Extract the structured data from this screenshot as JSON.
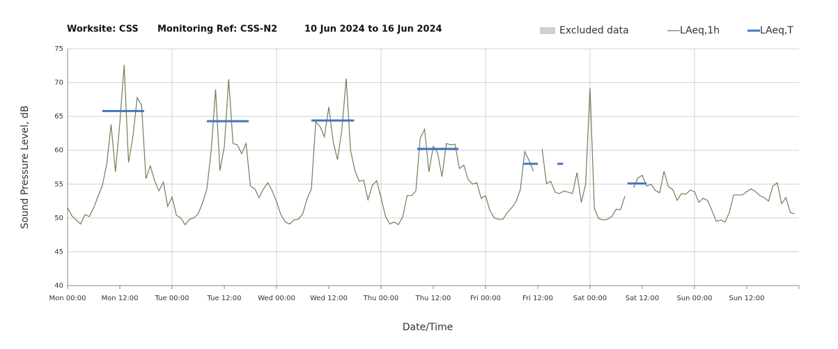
{
  "chart_data": {
    "type": "line",
    "title": [
      "Worksite: CSS",
      "Monitoring Ref: CSS-N2",
      "10 Jun 2024 to 16 Jun 2024"
    ],
    "y_label": "Sound Pressure Level, dB",
    "x_label": "Date/Time",
    "xlim": [
      0,
      168
    ],
    "xticks": [
      {
        "value": 0,
        "label": "Mon 00:00"
      },
      {
        "value": 12,
        "label": "Mon 12:00"
      },
      {
        "value": 24,
        "label": "Tue 00:00"
      },
      {
        "value": 36,
        "label": "Tue 12:00"
      },
      {
        "value": 48,
        "label": "Wed 00:00"
      },
      {
        "value": 60,
        "label": "Wed 12:00"
      },
      {
        "value": 72,
        "label": "Thu 00:00"
      },
      {
        "value": 84,
        "label": "Thu 12:00"
      },
      {
        "value": 96,
        "label": "Fri 00:00"
      },
      {
        "value": 108,
        "label": "Fri 12:00"
      },
      {
        "value": 120,
        "label": "Sat 00:00"
      },
      {
        "value": 132,
        "label": "Sat 12:00"
      },
      {
        "value": 144,
        "label": "Sun 00:00"
      },
      {
        "value": 156,
        "label": "Sun 12:00"
      }
    ],
    "ylim": [
      40,
      75
    ],
    "yticks": [
      40,
      45,
      50,
      55,
      60,
      65,
      70,
      75
    ],
    "grid": true,
    "legend": "top-right",
    "excluded": {
      "name": "Excluded data",
      "color": "#d0d0d0"
    },
    "x": [
      0,
      1,
      2,
      3,
      4,
      5,
      6,
      7,
      8,
      9,
      10,
      11,
      12,
      13,
      14,
      15,
      16,
      17,
      18,
      19,
      20,
      21,
      22,
      23,
      24,
      25,
      26,
      27,
      28,
      29,
      30,
      31,
      32,
      33,
      34,
      35,
      36,
      37,
      38,
      39,
      40,
      41,
      42,
      43,
      44,
      45,
      46,
      47,
      48,
      49,
      50,
      51,
      52,
      53,
      54,
      55,
      56,
      57,
      58,
      59,
      60,
      61,
      62,
      63,
      64,
      65,
      66,
      67,
      68,
      69,
      70,
      71,
      72,
      73,
      74,
      75,
      76,
      77,
      78,
      79,
      80,
      81,
      82,
      83,
      84,
      85,
      86,
      87,
      88,
      89,
      90,
      91,
      92,
      93,
      94,
      95,
      96,
      97,
      98,
      99,
      100,
      101,
      102,
      103,
      104,
      105,
      106,
      107,
      108,
      109,
      110,
      111,
      112,
      113,
      114,
      115,
      116,
      117,
      118,
      119,
      120,
      121,
      122,
      123,
      124,
      125,
      126,
      127,
      128,
      129,
      130,
      131,
      132,
      133,
      134,
      135,
      136,
      137,
      138,
      139,
      140,
      141,
      142,
      143,
      144,
      145,
      146,
      147,
      148,
      149,
      150,
      151,
      152,
      153,
      154,
      155,
      156,
      157,
      158,
      159,
      160,
      161,
      162,
      163,
      164,
      165,
      166,
      167
    ],
    "series": [
      {
        "name": "LAeq,1h",
        "color": "#6b7f55",
        "values": [
          51.5,
          50.3,
          49.7,
          49.1,
          50.5,
          50.2,
          51.5,
          53.2,
          54.8,
          58,
          63.8,
          56.8,
          64,
          72.6,
          58.2,
          62,
          67.8,
          66.6,
          55.8,
          57.7,
          55.5,
          54,
          55.3,
          51.7,
          53.1,
          50.4,
          50,
          49,
          49.8,
          50,
          50.6,
          52.2,
          54.3,
          60,
          69,
          57,
          60.5,
          70.5,
          61,
          60.8,
          59.5,
          61,
          54.7,
          54.3,
          53,
          54.3,
          55.2,
          54,
          52.4,
          50.5,
          49.4,
          49.1,
          49.7,
          49.8,
          50.6,
          52.8,
          54.3,
          64.2,
          63.5,
          62,
          66.4,
          61.3,
          58.6,
          63,
          70.6,
          60,
          57,
          55.4,
          55.6,
          52.7,
          54.8,
          55.5,
          53,
          50.3,
          49.1,
          49.4,
          49,
          50.2,
          53.3,
          53.3,
          54,
          61.8,
          63.1,
          56.8,
          60.6,
          59.6,
          56.1,
          61,
          60.8,
          60.9,
          57.3,
          57.8,
          55.7,
          55,
          55.2,
          52.9,
          53.3,
          51.1,
          50,
          49.8,
          49.8,
          50.8,
          51.5,
          52.4,
          54.2,
          59.8,
          58.5,
          56.9,
          null,
          60.2,
          55.1,
          55.4,
          53.8,
          53.6,
          54,
          53.8,
          53.6,
          56.7,
          52.3,
          55,
          69.2,
          51.4,
          49.9,
          49.7,
          49.8,
          50.2,
          51.3,
          51.2,
          53.2,
          null,
          54.5,
          55.9,
          56.3,
          54.7,
          55,
          54.1,
          53.7,
          56.9,
          54.6,
          54.2,
          52.6,
          53.6,
          53.5,
          54.1,
          53.9,
          52.3,
          52.9,
          52.6,
          51.1,
          49.5,
          49.7,
          49.4,
          50.8,
          53.4,
          53.4,
          53.4,
          53.9,
          54.3,
          53.9,
          53.3,
          53,
          52.5,
          54.7,
          55.2,
          52.1,
          53,
          50.8,
          50.6
        ]
      },
      {
        "name": "LAeq,T",
        "color": "#4472c4",
        "segments": [
          {
            "x": [
              8,
              17.6
            ],
            "value": 65.8
          },
          {
            "x": [
              32,
              41.6
            ],
            "value": 64.3
          },
          {
            "x": [
              56,
              65.8
            ],
            "value": 64.4
          },
          {
            "x": [
              80.3,
              89.8
            ],
            "value": 60.2
          },
          {
            "x": [
              104.6,
              108
            ],
            "value": 58
          },
          {
            "x": [
              112.5,
              113.8
            ],
            "value": 58
          },
          {
            "x": [
              128.6,
              133
            ],
            "value": 55.1
          }
        ]
      }
    ]
  }
}
